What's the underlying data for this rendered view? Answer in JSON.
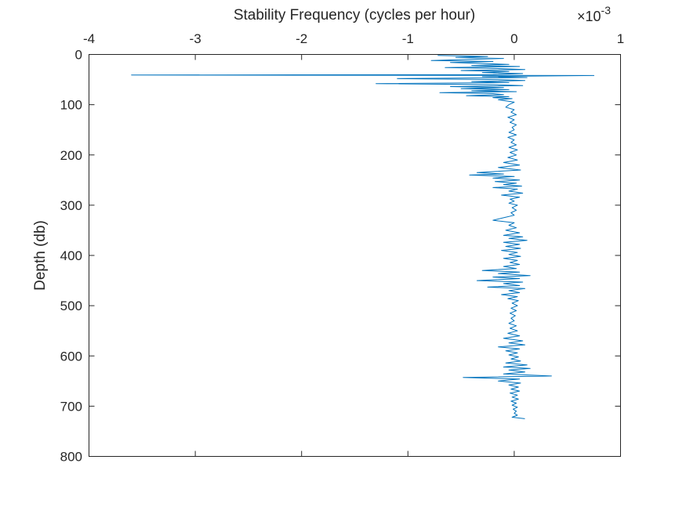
{
  "chart_data": {
    "type": "line",
    "xlabel": "Stability Frequency (cycles per hour)",
    "ylabel": "Depth (db)",
    "x_axis_position": "top",
    "y_axis_direction": "reversed",
    "x_exponent_label": {
      "times": "×10",
      "power": "-3"
    },
    "xlim": [
      -4,
      1
    ],
    "ylim": [
      0,
      800
    ],
    "xticks": [
      -4,
      -3,
      -2,
      -1,
      0,
      1
    ],
    "yticks": [
      0,
      100,
      200,
      300,
      400,
      500,
      600,
      700,
      800
    ],
    "xtick_labels": [
      "-4",
      "-3",
      "-2",
      "-1",
      "0",
      "1"
    ],
    "ytick_labels": [
      "0",
      "100",
      "200",
      "300",
      "400",
      "500",
      "600",
      "700",
      "800"
    ],
    "grid": false,
    "series": [
      {
        "color": "#0072BD",
        "points": [
          [
            -0.72,
            2
          ],
          [
            -0.25,
            4
          ],
          [
            -0.55,
            6
          ],
          [
            -0.1,
            8
          ],
          [
            -0.45,
            10
          ],
          [
            -0.78,
            12
          ],
          [
            -0.2,
            14
          ],
          [
            -0.6,
            16
          ],
          [
            -0.3,
            18
          ],
          [
            -0.05,
            20
          ],
          [
            -0.4,
            22
          ],
          [
            0.05,
            24
          ],
          [
            -0.65,
            26
          ],
          [
            -0.15,
            28
          ],
          [
            0.1,
            30
          ],
          [
            -0.5,
            32
          ],
          [
            -0.05,
            34
          ],
          [
            -0.3,
            36
          ],
          [
            0.08,
            38
          ],
          [
            -0.2,
            40
          ],
          [
            -3.6,
            41
          ],
          [
            0.75,
            42
          ],
          [
            -0.3,
            44
          ],
          [
            0.12,
            46
          ],
          [
            -1.1,
            48
          ],
          [
            -0.15,
            50
          ],
          [
            0.1,
            52
          ],
          [
            -0.4,
            54
          ],
          [
            -0.05,
            56
          ],
          [
            -1.3,
            58
          ],
          [
            -0.2,
            60
          ],
          [
            0.08,
            62
          ],
          [
            -0.6,
            64
          ],
          [
            -0.1,
            66
          ],
          [
            -0.5,
            68
          ],
          [
            -0.05,
            70
          ],
          [
            -0.4,
            72
          ],
          [
            0.02,
            74
          ],
          [
            -0.7,
            76
          ],
          [
            -0.2,
            78
          ],
          [
            -0.1,
            80
          ],
          [
            -0.45,
            82
          ],
          [
            -0.05,
            84
          ],
          [
            -0.2,
            86
          ],
          [
            -0.02,
            88
          ],
          [
            -0.15,
            90
          ],
          [
            0.0,
            95
          ],
          [
            -0.05,
            100
          ],
          [
            -0.08,
            105
          ],
          [
            0.0,
            110
          ],
          [
            -0.03,
            115
          ],
          [
            0.02,
            120
          ],
          [
            -0.06,
            125
          ],
          [
            0.0,
            130
          ],
          [
            -0.04,
            135
          ],
          [
            0.02,
            140
          ],
          [
            -0.02,
            145
          ],
          [
            0.0,
            150
          ],
          [
            -0.05,
            155
          ],
          [
            0.02,
            160
          ],
          [
            -0.06,
            165
          ],
          [
            0.0,
            170
          ],
          [
            -0.03,
            175
          ],
          [
            0.02,
            180
          ],
          [
            -0.05,
            185
          ],
          [
            0.03,
            190
          ],
          [
            -0.04,
            195
          ],
          [
            0.02,
            200
          ],
          [
            -0.06,
            205
          ],
          [
            0.03,
            210
          ],
          [
            -0.1,
            215
          ],
          [
            0.05,
            220
          ],
          [
            -0.15,
            225
          ],
          [
            0.06,
            230
          ],
          [
            -0.35,
            235
          ],
          [
            -0.1,
            238
          ],
          [
            -0.42,
            240
          ],
          [
            0.0,
            243
          ],
          [
            -0.2,
            246
          ],
          [
            0.05,
            250
          ],
          [
            -0.18,
            253
          ],
          [
            0.02,
            256
          ],
          [
            -0.1,
            259
          ],
          [
            0.07,
            262
          ],
          [
            -0.2,
            265
          ],
          [
            0.03,
            268
          ],
          [
            -0.05,
            272
          ],
          [
            0.08,
            276
          ],
          [
            -0.12,
            280
          ],
          [
            0.05,
            284
          ],
          [
            -0.04,
            288
          ],
          [
            0.0,
            292
          ],
          [
            -0.05,
            296
          ],
          [
            0.03,
            300
          ],
          [
            -0.02,
            305
          ],
          [
            0.02,
            310
          ],
          [
            -0.03,
            315
          ],
          [
            0.0,
            320
          ],
          [
            -0.1,
            325
          ],
          [
            -0.2,
            330
          ],
          [
            0.0,
            335
          ],
          [
            -0.05,
            340
          ],
          [
            0.02,
            345
          ],
          [
            -0.08,
            350
          ],
          [
            0.05,
            355
          ],
          [
            -0.1,
            360
          ],
          [
            0.08,
            363
          ],
          [
            -0.05,
            366
          ],
          [
            0.12,
            370
          ],
          [
            -0.1,
            374
          ],
          [
            0.05,
            378
          ],
          [
            -0.08,
            382
          ],
          [
            0.06,
            386
          ],
          [
            -0.12,
            390
          ],
          [
            0.03,
            394
          ],
          [
            -0.05,
            398
          ],
          [
            0.06,
            402
          ],
          [
            -0.1,
            406
          ],
          [
            0.03,
            410
          ],
          [
            -0.04,
            414
          ],
          [
            0.05,
            418
          ],
          [
            -0.1,
            422
          ],
          [
            0.02,
            426
          ],
          [
            -0.3,
            430
          ],
          [
            0.05,
            433
          ],
          [
            -0.15,
            436
          ],
          [
            0.15,
            440
          ],
          [
            -0.2,
            443
          ],
          [
            0.05,
            446
          ],
          [
            -0.35,
            450
          ],
          [
            0.08,
            453
          ],
          [
            -0.1,
            456
          ],
          [
            0.05,
            460
          ],
          [
            -0.25,
            463
          ],
          [
            0.1,
            466
          ],
          [
            -0.05,
            470
          ],
          [
            0.05,
            474
          ],
          [
            -0.12,
            478
          ],
          [
            0.03,
            482
          ],
          [
            -0.06,
            486
          ],
          [
            0.04,
            490
          ],
          [
            -0.02,
            495
          ],
          [
            0.03,
            500
          ],
          [
            -0.03,
            505
          ],
          [
            0.02,
            510
          ],
          [
            -0.04,
            515
          ],
          [
            0.01,
            520
          ],
          [
            -0.03,
            525
          ],
          [
            0.0,
            530
          ],
          [
            -0.05,
            535
          ],
          [
            0.02,
            540
          ],
          [
            -0.04,
            545
          ],
          [
            0.03,
            550
          ],
          [
            -0.06,
            555
          ],
          [
            0.05,
            560
          ],
          [
            -0.1,
            565
          ],
          [
            0.08,
            570
          ],
          [
            -0.05,
            574
          ],
          [
            0.1,
            578
          ],
          [
            -0.15,
            582
          ],
          [
            0.05,
            586
          ],
          [
            -0.08,
            590
          ],
          [
            0.03,
            594
          ],
          [
            -0.05,
            598
          ],
          [
            0.04,
            602
          ],
          [
            -0.03,
            606
          ],
          [
            0.06,
            610
          ],
          [
            -0.08,
            614
          ],
          [
            0.12,
            618
          ],
          [
            -0.1,
            622
          ],
          [
            0.15,
            625
          ],
          [
            -0.05,
            628
          ],
          [
            0.1,
            632
          ],
          [
            -0.1,
            636
          ],
          [
            0.35,
            640
          ],
          [
            -0.48,
            643
          ],
          [
            0.05,
            646
          ],
          [
            -0.15,
            650
          ],
          [
            0.06,
            654
          ],
          [
            -0.05,
            658
          ],
          [
            0.04,
            662
          ],
          [
            -0.03,
            666
          ],
          [
            0.05,
            670
          ],
          [
            -0.04,
            674
          ],
          [
            0.03,
            678
          ],
          [
            -0.02,
            682
          ],
          [
            0.04,
            686
          ],
          [
            -0.03,
            690
          ],
          [
            0.02,
            694
          ],
          [
            -0.02,
            698
          ],
          [
            0.03,
            702
          ],
          [
            -0.01,
            706
          ],
          [
            0.02,
            710
          ],
          [
            0.0,
            714
          ],
          [
            0.03,
            718
          ],
          [
            -0.02,
            722
          ],
          [
            0.1,
            725
          ]
        ]
      }
    ]
  }
}
